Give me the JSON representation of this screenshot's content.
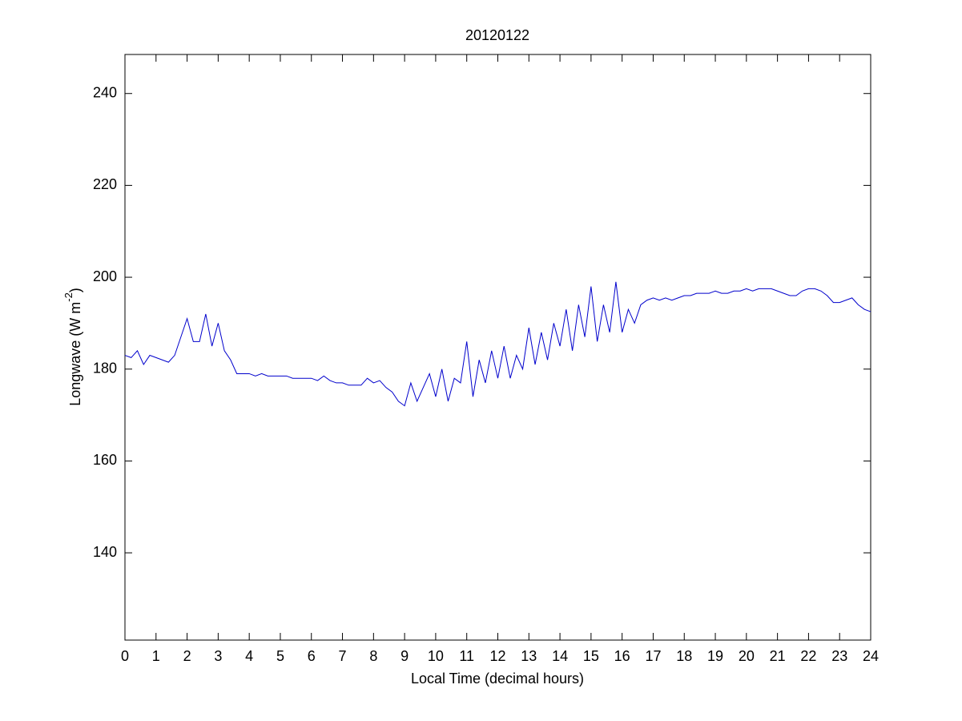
{
  "chart_data": {
    "type": "line",
    "title": "20120122",
    "xlabel": "Local Time (decimal hours)",
    "ylabel": [
      "Longwave (W m",
      "-2",
      ")"
    ],
    "xlim": [
      0,
      24
    ],
    "xticks": [
      0,
      1,
      2,
      3,
      4,
      5,
      6,
      7,
      8,
      9,
      10,
      11,
      12,
      13,
      14,
      15,
      16,
      17,
      18,
      19,
      20,
      21,
      22,
      23,
      24
    ],
    "ylim": [
      121,
      248.5
    ],
    "yticks": [
      140,
      160,
      180,
      200,
      220,
      240
    ],
    "grid": false,
    "x": [
      0,
      0.2,
      0.4,
      0.6,
      0.8,
      1,
      1.2,
      1.4,
      1.6,
      1.8,
      2,
      2.2,
      2.4,
      2.6,
      2.8,
      3,
      3.2,
      3.4,
      3.6,
      3.8,
      4,
      4.2,
      4.4,
      4.6,
      4.8,
      5,
      5.2,
      5.4,
      5.6,
      5.8,
      6,
      6.2,
      6.4,
      6.6,
      6.8,
      7,
      7.2,
      7.4,
      7.6,
      7.8,
      8,
      8.2,
      8.4,
      8.6,
      8.8,
      9,
      9.2,
      9.4,
      9.6,
      9.8,
      10,
      10.2,
      10.4,
      10.6,
      10.8,
      11,
      11.2,
      11.4,
      11.6,
      11.8,
      12,
      12.2,
      12.4,
      12.6,
      12.8,
      13,
      13.2,
      13.4,
      13.6,
      13.8,
      14,
      14.2,
      14.4,
      14.6,
      14.8,
      15,
      15.2,
      15.4,
      15.6,
      15.8,
      16,
      16.2,
      16.4,
      16.6,
      16.8,
      17,
      17.2,
      17.4,
      17.6,
      17.8,
      18,
      18.2,
      18.4,
      18.6,
      18.8,
      19,
      19.2,
      19.4,
      19.6,
      19.8,
      20,
      20.2,
      20.4,
      20.6,
      20.8,
      21,
      21.2,
      21.4,
      21.6,
      21.8,
      22,
      22.2,
      22.4,
      22.6,
      22.8,
      23,
      23.2,
      23.4,
      23.6,
      23.8,
      24
    ],
    "series": [
      {
        "color": "#0000cc",
        "values": [
          183,
          182.5,
          184,
          181,
          183,
          182.5,
          182,
          181.5,
          183,
          187,
          191,
          186,
          186,
          192,
          185,
          190,
          184,
          182,
          179,
          179,
          179,
          178.5,
          179,
          178.5,
          178.5,
          178.5,
          178.5,
          178,
          178,
          178,
          178,
          177.5,
          178.5,
          177.5,
          177,
          177,
          176.5,
          176.5,
          176.5,
          178,
          177,
          177.5,
          176,
          175,
          173,
          172,
          177,
          173,
          176,
          179,
          174,
          180,
          173,
          178,
          177,
          186,
          174,
          182,
          177,
          184,
          178,
          185,
          178,
          183,
          180,
          189,
          181,
          188,
          182,
          190,
          185,
          193,
          184,
          194,
          187,
          198,
          186,
          194,
          188,
          199,
          188,
          193,
          190,
          194,
          195,
          195.5,
          195,
          195.5,
          195,
          195.5,
          196,
          196,
          196.5,
          196.5,
          196.5,
          197,
          196.5,
          196.5,
          197,
          197,
          197.5,
          197,
          197.5,
          197.5,
          197.5,
          197,
          196.5,
          196,
          196,
          197,
          197.5,
          197.5,
          197,
          196,
          194.5,
          194.5,
          195,
          195.5,
          194,
          193,
          192.5
        ]
      }
    ]
  }
}
